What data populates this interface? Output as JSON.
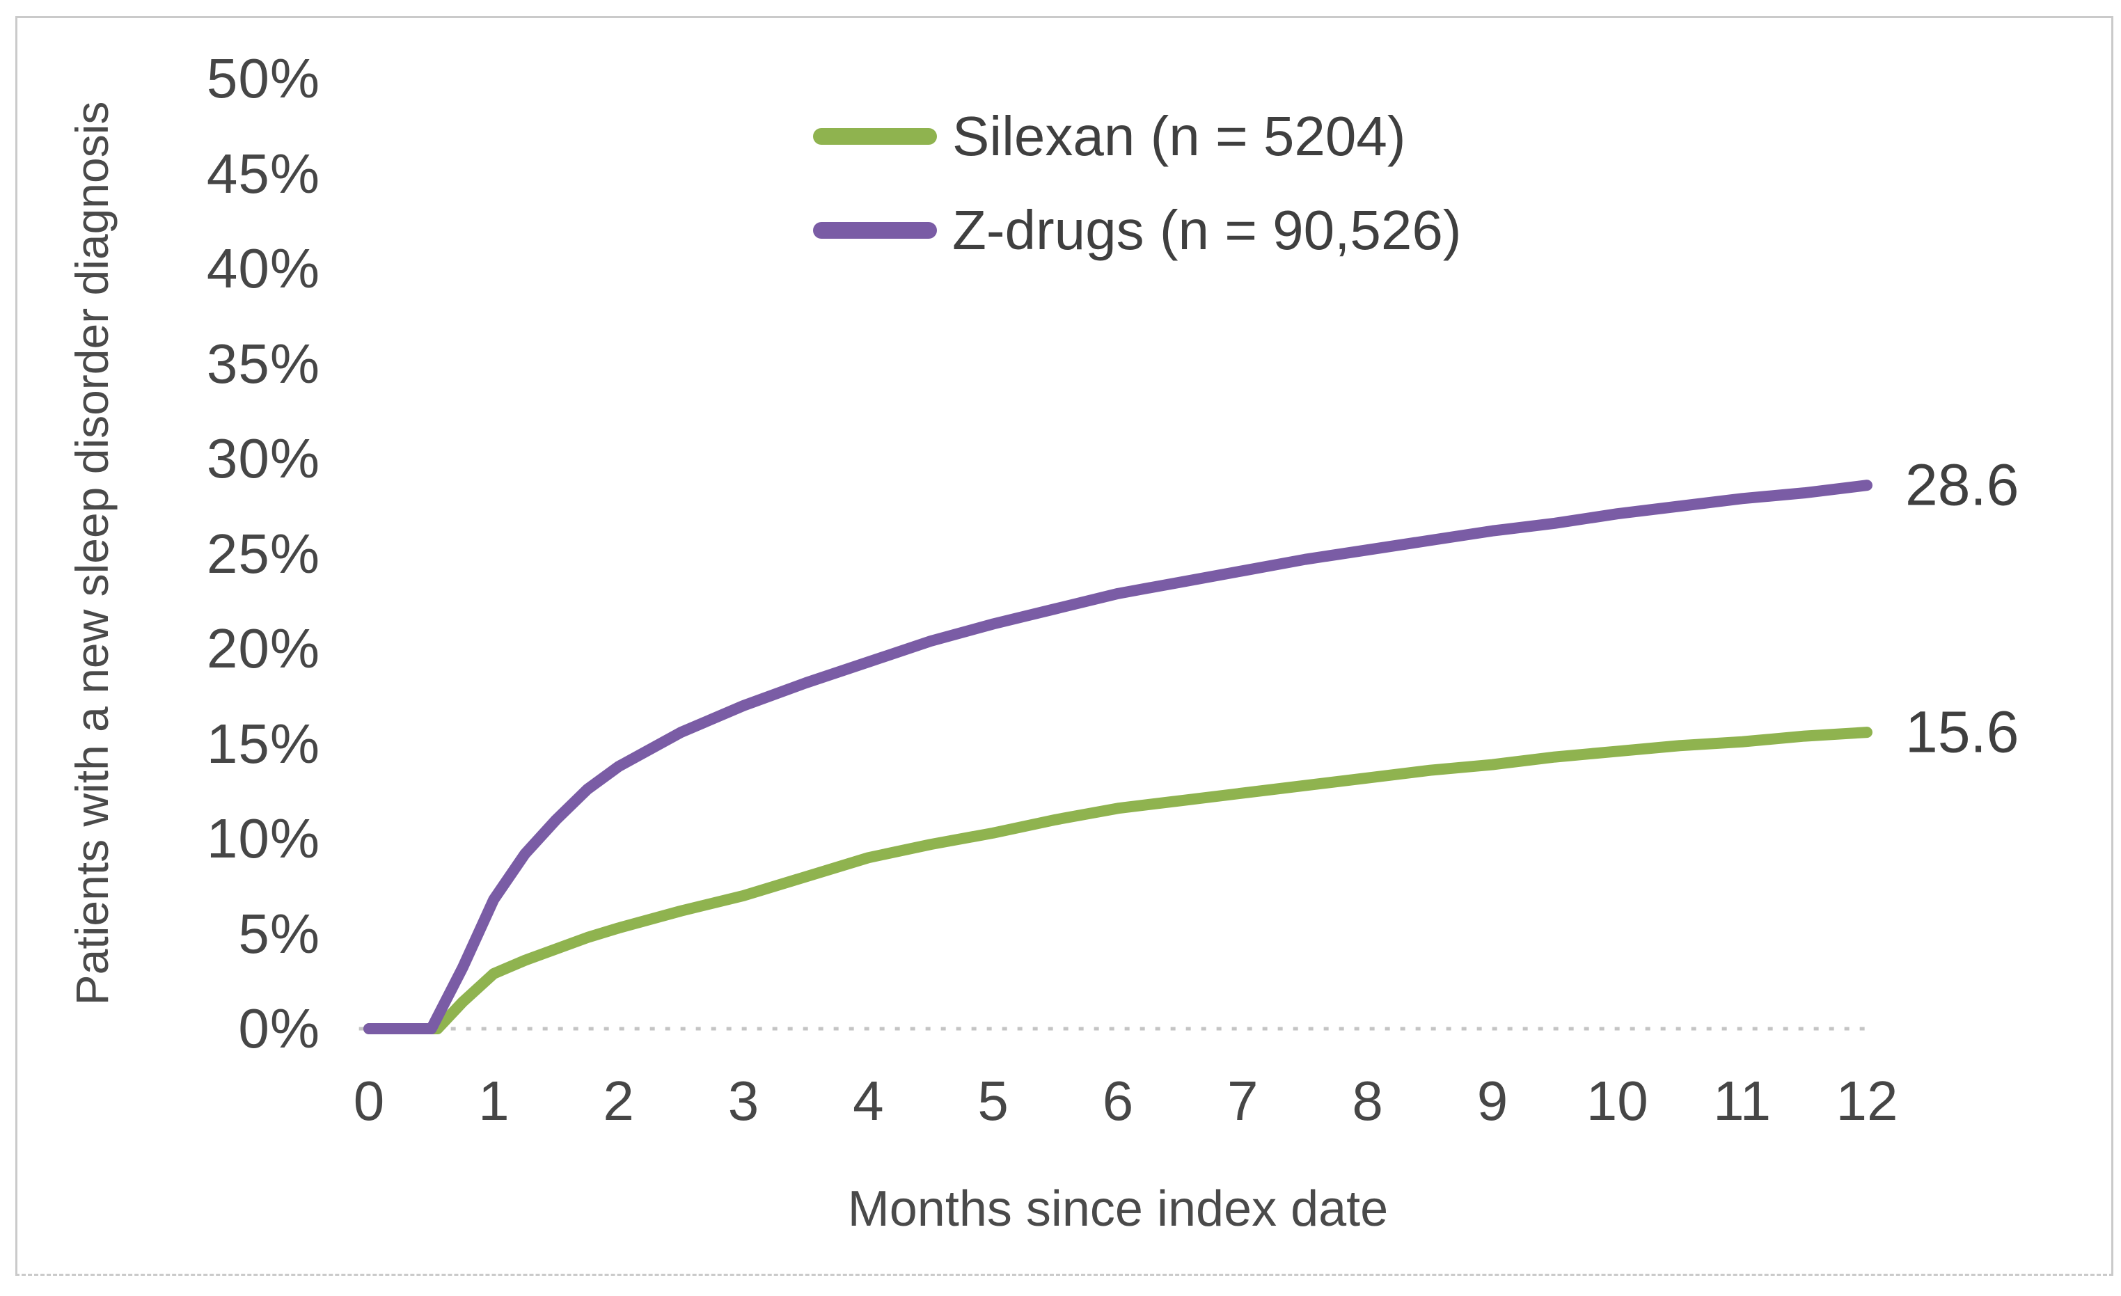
{
  "chart_data": {
    "type": "line",
    "title": "",
    "xlabel": "Months since index date",
    "ylabel": "Patients with a new sleep disorder diagnosis",
    "xlim": [
      0,
      12
    ],
    "ylim": [
      0,
      50
    ],
    "x_ticks": [
      "0",
      "1",
      "2",
      "3",
      "4",
      "5",
      "6",
      "7",
      "8",
      "9",
      "10",
      "11",
      "12"
    ],
    "y_ticks": [
      "0%",
      "5%",
      "10%",
      "15%",
      "20%",
      "25%",
      "30%",
      "35%",
      "40%",
      "45%",
      "50%"
    ],
    "grid": "dotted zero baseline only",
    "legend_position": "top-center-inside",
    "zero_line_color": "#c4c4c4",
    "series": [
      {
        "name": "Silexan (n = 5204)",
        "color": "#8FB34F",
        "end_label": "15.6",
        "points": [
          [
            0,
            0
          ],
          [
            0.55,
            0
          ],
          [
            0.75,
            1.4
          ],
          [
            1,
            2.9
          ],
          [
            1.25,
            3.6
          ],
          [
            1.5,
            4.2
          ],
          [
            1.75,
            4.8
          ],
          [
            2,
            5.3
          ],
          [
            2.5,
            6.2
          ],
          [
            3,
            7.0
          ],
          [
            3.5,
            8.0
          ],
          [
            4,
            9.0
          ],
          [
            4.5,
            9.7
          ],
          [
            5,
            10.3
          ],
          [
            5.5,
            11.0
          ],
          [
            6,
            11.6
          ],
          [
            6.5,
            12.0
          ],
          [
            7,
            12.4
          ],
          [
            7.5,
            12.8
          ],
          [
            8,
            13.2
          ],
          [
            8.5,
            13.6
          ],
          [
            9,
            13.9
          ],
          [
            9.5,
            14.3
          ],
          [
            10,
            14.6
          ],
          [
            10.5,
            14.9
          ],
          [
            11,
            15.1
          ],
          [
            11.5,
            15.4
          ],
          [
            12,
            15.6
          ]
        ]
      },
      {
        "name": "Z-drugs (n = 90,526)",
        "color": "#7A5CA5",
        "end_label": "28.6",
        "points": [
          [
            0,
            0
          ],
          [
            0.5,
            0
          ],
          [
            0.75,
            3.2
          ],
          [
            1,
            6.8
          ],
          [
            1.25,
            9.2
          ],
          [
            1.5,
            11.0
          ],
          [
            1.75,
            12.6
          ],
          [
            2,
            13.8
          ],
          [
            2.5,
            15.6
          ],
          [
            3,
            17.0
          ],
          [
            3.5,
            18.2
          ],
          [
            4,
            19.3
          ],
          [
            4.5,
            20.4
          ],
          [
            5,
            21.3
          ],
          [
            5.5,
            22.1
          ],
          [
            6,
            22.9
          ],
          [
            6.5,
            23.5
          ],
          [
            7,
            24.1
          ],
          [
            7.5,
            24.7
          ],
          [
            8,
            25.2
          ],
          [
            8.5,
            25.7
          ],
          [
            9,
            26.2
          ],
          [
            9.5,
            26.6
          ],
          [
            10,
            27.1
          ],
          [
            10.5,
            27.5
          ],
          [
            11,
            27.9
          ],
          [
            11.5,
            28.2
          ],
          [
            12,
            28.6
          ]
        ]
      }
    ]
  }
}
